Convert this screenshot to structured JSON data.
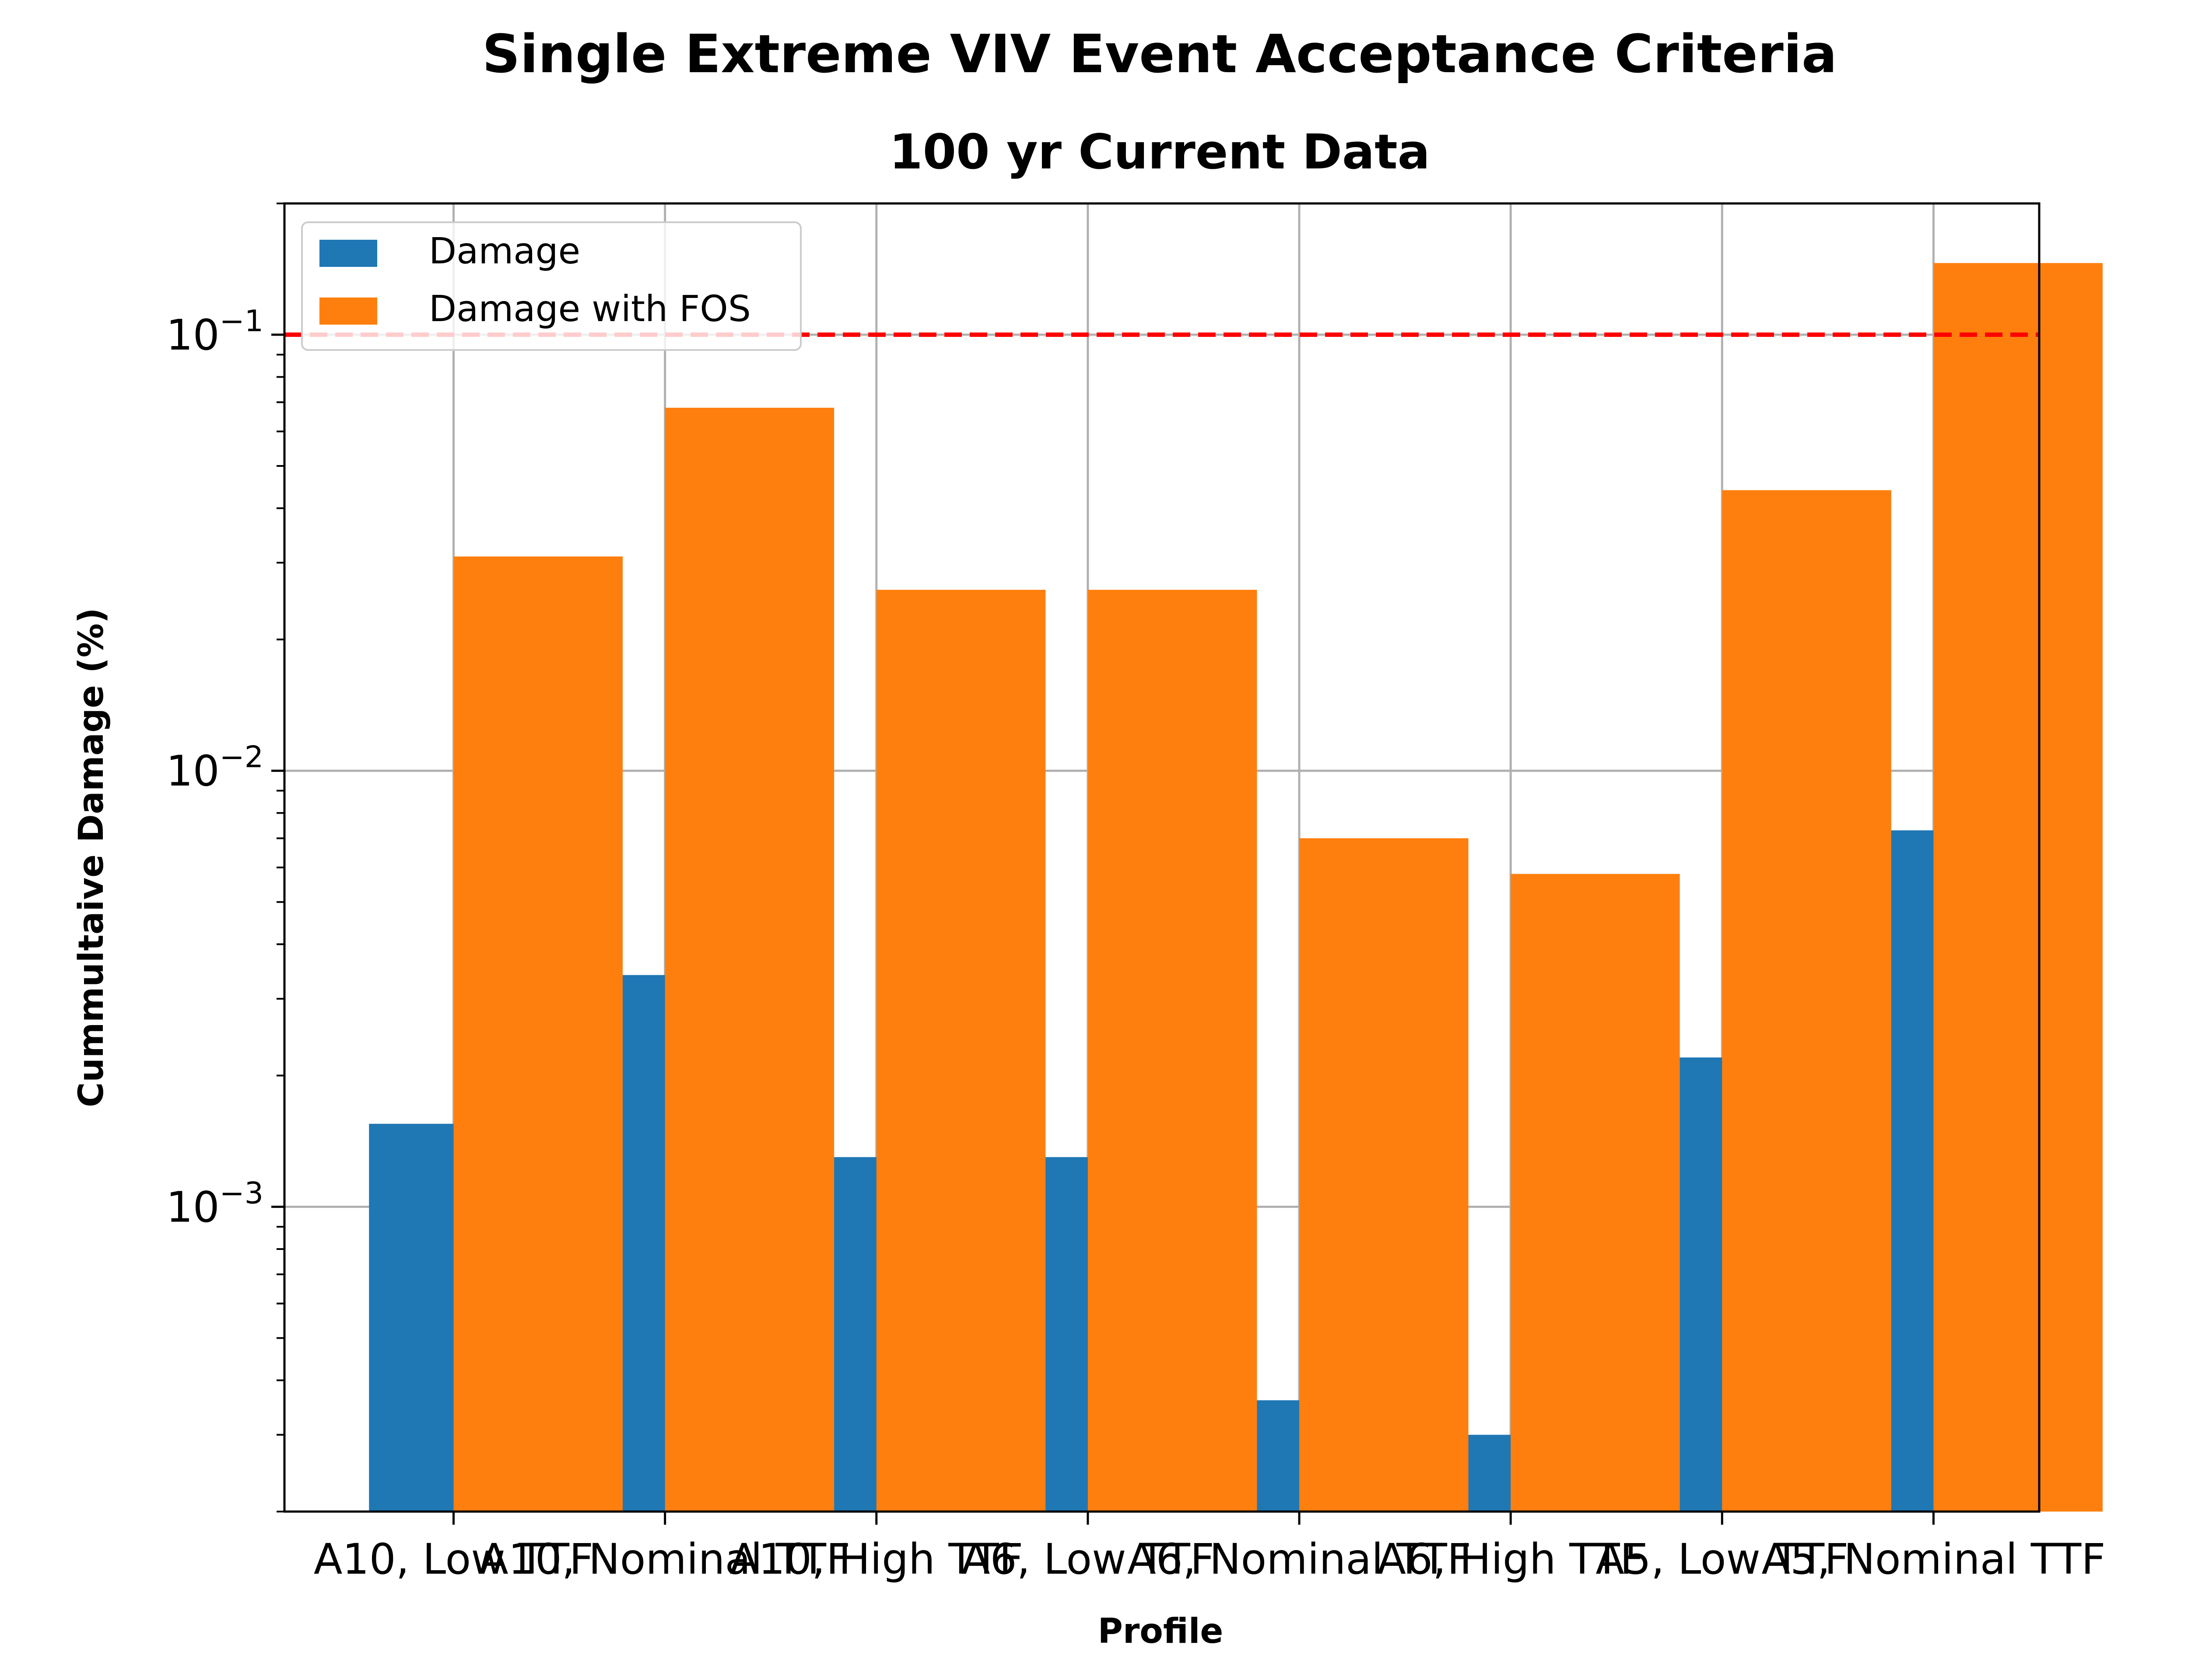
{
  "chart_data": {
    "type": "bar",
    "title": "Single Extreme VIV Event Acceptance Criteria",
    "subtitle": "100 yr Current Data",
    "xlabel": "Profile",
    "ylabel": "Cummultaive Damage (%)",
    "yscale": "log",
    "ylim": [
      0.0002,
      0.2
    ],
    "yticks": [
      {
        "value": 0.001,
        "base": "10",
        "exp": "−3"
      },
      {
        "value": 0.01,
        "base": "10",
        "exp": "−2"
      },
      {
        "value": 0.1,
        "base": "10",
        "exp": "−1"
      }
    ],
    "grid": true,
    "legend_position": "top-left",
    "categories": [
      "A10, Low TTF",
      "A10, Nominal TTF",
      "A10, High TTF",
      "A6, Low TTF",
      "A6, Nominal TTF",
      "A6, High TTF",
      "A5, Low TTF",
      "A5, Nominal TTF"
    ],
    "series": [
      {
        "name": "Damage",
        "color": "#1f77b4",
        "values": [
          0.00155,
          0.0034,
          0.0013,
          0.0013,
          0.00036,
          0.0003,
          0.0022,
          0.0073
        ]
      },
      {
        "name": "Damage with FOS",
        "color": "#ff7f0e",
        "values": [
          0.031,
          0.068,
          0.026,
          0.026,
          0.007,
          0.0058,
          0.044,
          0.146
        ]
      }
    ],
    "threshold": {
      "value": 0.1,
      "color": "#ff0000",
      "style": "dashed"
    }
  }
}
